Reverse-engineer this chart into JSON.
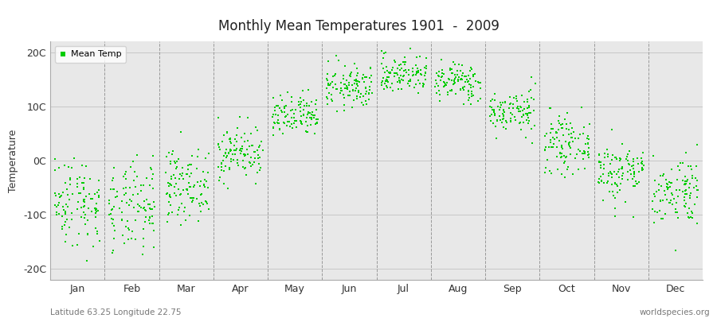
{
  "title": "Monthly Mean Temperatures 1901  -  2009",
  "ylabel": "Temperature",
  "xlabel_labels": [
    "Jan",
    "Feb",
    "Mar",
    "Apr",
    "May",
    "Jun",
    "Jul",
    "Aug",
    "Sep",
    "Oct",
    "Nov",
    "Dec"
  ],
  "ytick_labels": [
    "-20C",
    "-10C",
    "0C",
    "10C",
    "20C"
  ],
  "ytick_values": [
    -20,
    -10,
    0,
    10,
    20
  ],
  "ylim": [
    -22,
    22
  ],
  "dot_color": "#00CC00",
  "dot_size": 3,
  "background_color": "#E8E8E8",
  "fig_bg_color": "#FFFFFF",
  "subtitle_left": "Latitude 63.25 Longitude 22.75",
  "subtitle_right": "worldspecies.org",
  "monthly_means": [
    -7.5,
    -9.0,
    -4.5,
    1.5,
    8.0,
    13.5,
    16.0,
    14.5,
    9.0,
    3.0,
    -2.0,
    -5.5
  ],
  "monthly_stds": [
    4.2,
    4.2,
    3.2,
    2.5,
    2.0,
    2.0,
    1.8,
    1.8,
    2.0,
    2.5,
    2.8,
    3.2
  ],
  "n_years": 109,
  "seed": 42,
  "legend_label": "Mean Temp"
}
